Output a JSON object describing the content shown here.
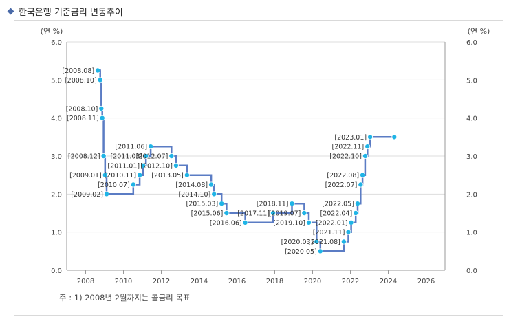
{
  "header": {
    "title": "한국은행 기준금리 변동추이"
  },
  "footnote": "주 : 1) 2008년 2월까지는 콜금리 목표",
  "colors": {
    "line": "#5b7cc4",
    "marker": "#1fb4e6",
    "grid": "#dddddd",
    "axis": "#999999"
  },
  "chart_data": {
    "type": "line",
    "step": true,
    "ylabel_left": "(연 %)",
    "ylabel_right": "(연 %)",
    "xlim": [
      2007.0,
      2027.0
    ],
    "ylim": [
      0,
      6
    ],
    "xticks": [
      "2008",
      "2010",
      "2012",
      "2014",
      "2016",
      "2018",
      "2020",
      "2022",
      "2024",
      "2026"
    ],
    "yticks": [
      "0.0",
      "1.0",
      "2.0",
      "3.0",
      "4.0",
      "5.0",
      "6.0"
    ],
    "grid": true,
    "points": [
      {
        "label": "[2008.08]",
        "x": 2008.64,
        "y": 5.25
      },
      {
        "label": "[2008.10]",
        "x": 2008.77,
        "y": 5.0
      },
      {
        "label": "[2008.10]",
        "x": 2008.83,
        "y": 4.25
      },
      {
        "label": "[2008.11]",
        "x": 2008.88,
        "y": 4.0
      },
      {
        "label": "[2008.12]",
        "x": 2008.95,
        "y": 3.0
      },
      {
        "label": "[2009.01]",
        "x": 2009.03,
        "y": 2.5
      },
      {
        "label": "[2009.02]",
        "x": 2009.11,
        "y": 2.0
      },
      {
        "label": "[2010.07]",
        "x": 2010.52,
        "y": 2.25
      },
      {
        "label": "[2010.11]",
        "x": 2010.86,
        "y": 2.5
      },
      {
        "label": "[2011.01]",
        "x": 2011.04,
        "y": 2.75
      },
      {
        "label": "[2011.03]",
        "x": 2011.19,
        "y": 3.0
      },
      {
        "label": "[2011.06]",
        "x": 2011.44,
        "y": 3.25
      },
      {
        "label": "[2012.07]",
        "x": 2012.54,
        "y": 3.0
      },
      {
        "label": "[2012.10]",
        "x": 2012.78,
        "y": 2.75
      },
      {
        "label": "[2013.05]",
        "x": 2013.36,
        "y": 2.5
      },
      {
        "label": "[2014.08]",
        "x": 2014.64,
        "y": 2.25
      },
      {
        "label": "[2014.10]",
        "x": 2014.79,
        "y": 2.0
      },
      {
        "label": "[2015.03]",
        "x": 2015.19,
        "y": 1.75
      },
      {
        "label": "[2015.06]",
        "x": 2015.45,
        "y": 1.5
      },
      {
        "label": "[2016.06]",
        "x": 2016.44,
        "y": 1.25
      },
      {
        "label": "[2017.11]",
        "x": 2017.91,
        "y": 1.5
      },
      {
        "label": "[2018.11]",
        "x": 2018.91,
        "y": 1.75
      },
      {
        "label": "[2019.07]",
        "x": 2019.56,
        "y": 1.5
      },
      {
        "label": "[2019.10]",
        "x": 2019.8,
        "y": 1.25
      },
      {
        "label": "[2020.03]",
        "x": 2020.21,
        "y": 0.75
      },
      {
        "label": "[2020.05]",
        "x": 2020.41,
        "y": 0.5
      },
      {
        "label": "[2021.08]",
        "x": 2021.65,
        "y": 0.75
      },
      {
        "label": "[2021.11]",
        "x": 2021.89,
        "y": 1.0
      },
      {
        "label": "[2022.01]",
        "x": 2022.04,
        "y": 1.25
      },
      {
        "label": "[2022.04]",
        "x": 2022.28,
        "y": 1.5
      },
      {
        "label": "[2022.05]",
        "x": 2022.38,
        "y": 1.75
      },
      {
        "label": "[2022.07]",
        "x": 2022.54,
        "y": 2.25
      },
      {
        "label": "[2022.08]",
        "x": 2022.64,
        "y": 2.5
      },
      {
        "label": "[2022.10]",
        "x": 2022.78,
        "y": 3.0
      },
      {
        "label": "[2022.11]",
        "x": 2022.9,
        "y": 3.25
      },
      {
        "label": "[2023.01]",
        "x": 2023.04,
        "y": 3.5
      },
      {
        "label": "",
        "x": 2024.32,
        "y": 3.5
      }
    ]
  }
}
